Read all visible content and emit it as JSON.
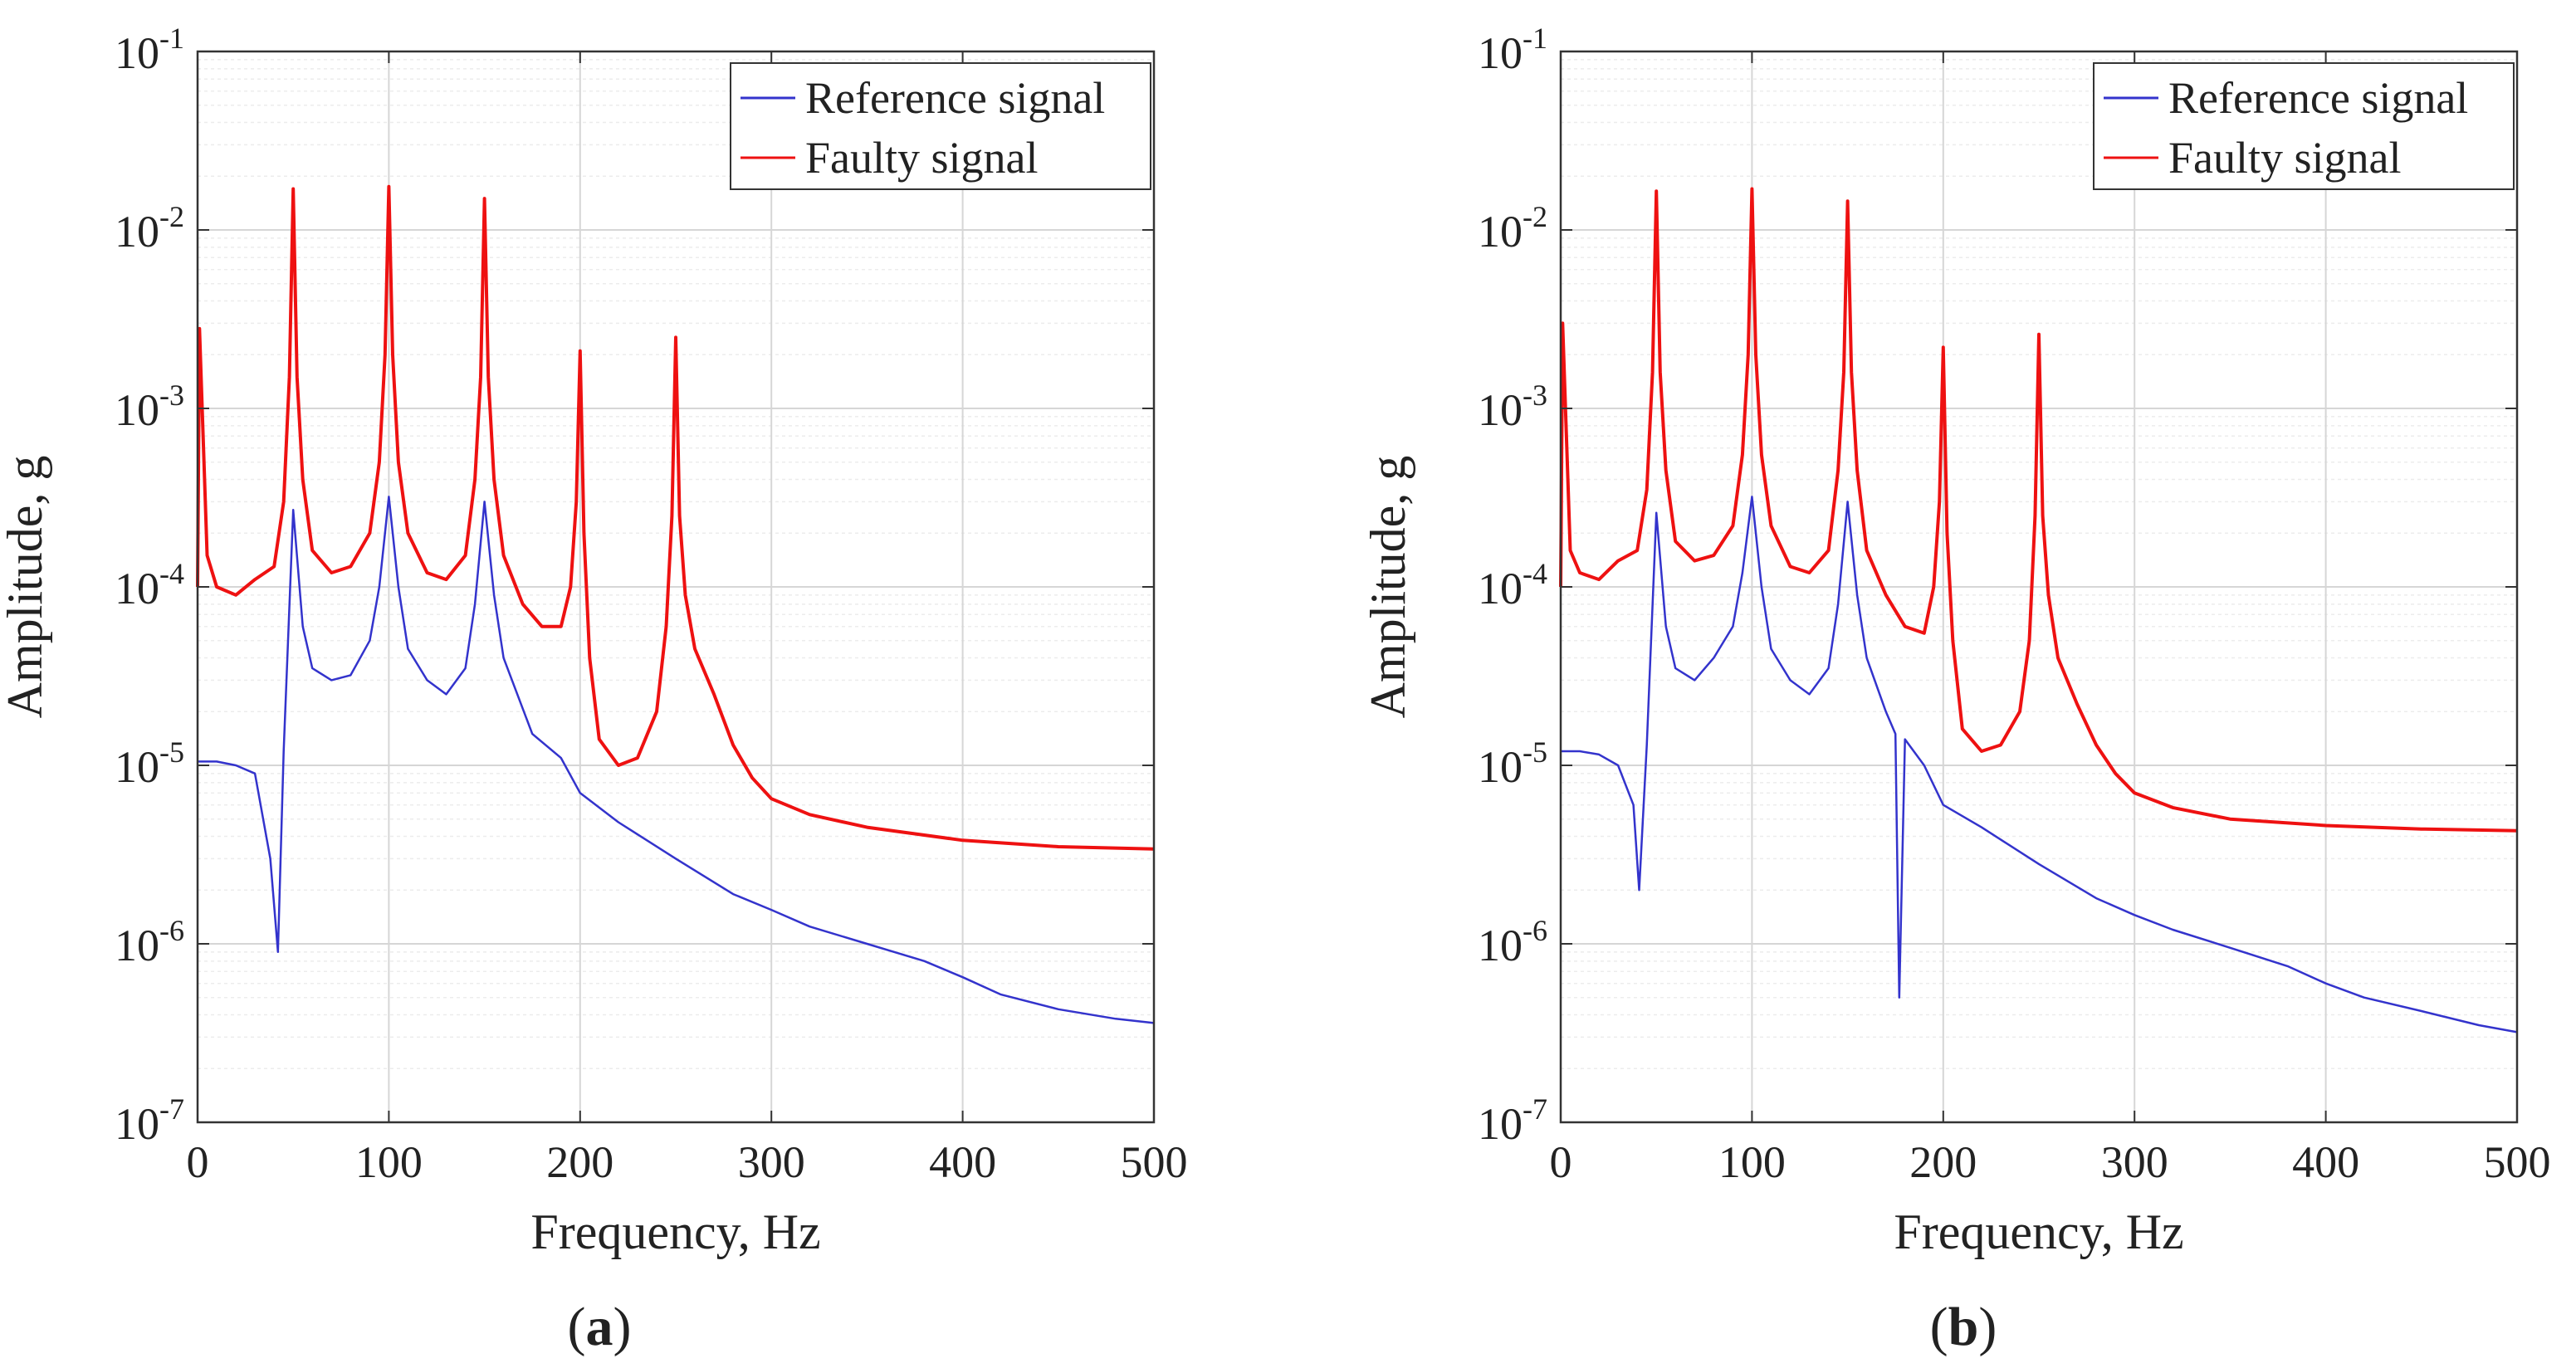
{
  "figure": {
    "captions": [
      {
        "open": "(",
        "letter": "a",
        "close": ")"
      },
      {
        "open": "(",
        "letter": "b",
        "close": ")"
      }
    ]
  },
  "chart_data": [
    {
      "type": "line",
      "panel": "a",
      "xlabel": "Frequency, Hz",
      "ylabel": "Amplitude, g",
      "xlim": [
        0,
        500
      ],
      "ylim": [
        1e-07,
        0.1
      ],
      "yscale": "log",
      "grid": true,
      "legend_position": "top-right",
      "x_ticks": [
        "0",
        "100",
        "200",
        "300",
        "400",
        "500"
      ],
      "y_ticks": [
        {
          "base": "10",
          "exp": "-7"
        },
        {
          "base": "10",
          "exp": "-6"
        },
        {
          "base": "10",
          "exp": "-5"
        },
        {
          "base": "10",
          "exp": "-4"
        },
        {
          "base": "10",
          "exp": "-3"
        },
        {
          "base": "10",
          "exp": "-2"
        },
        {
          "base": "10",
          "exp": "-1"
        }
      ],
      "series": [
        {
          "name": "Reference signal",
          "color": "#3333cc",
          "x": [
            0,
            10,
            20,
            30,
            38,
            42,
            45,
            50,
            55,
            60,
            70,
            80,
            90,
            95,
            100,
            105,
            110,
            120,
            130,
            140,
            145,
            150,
            155,
            160,
            175,
            190,
            200,
            220,
            250,
            280,
            300,
            320,
            350,
            380,
            400,
            420,
            450,
            480,
            500
          ],
          "y": [
            1.05e-05,
            1.05e-05,
            1e-05,
            9e-06,
            3e-06,
            9e-07,
            1.2e-05,
            0.00027,
            6e-05,
            3.5e-05,
            3e-05,
            3.2e-05,
            5e-05,
            0.0001,
            0.00032,
            0.0001,
            4.5e-05,
            3e-05,
            2.5e-05,
            3.5e-05,
            8e-05,
            0.0003,
            9e-05,
            4e-05,
            1.5e-05,
            1.1e-05,
            7e-06,
            4.8e-06,
            3e-06,
            1.9e-06,
            1.55e-06,
            1.25e-06,
            1e-06,
            8e-07,
            6.5e-07,
            5.2e-07,
            4.3e-07,
            3.8e-07,
            3.6e-07
          ]
        },
        {
          "name": "Faulty signal",
          "color": "#ee1111",
          "x": [
            0,
            1,
            5,
            10,
            20,
            30,
            40,
            45,
            48,
            50,
            52,
            55,
            60,
            70,
            80,
            90,
            95,
            98,
            100,
            102,
            105,
            110,
            120,
            130,
            140,
            145,
            148,
            150,
            152,
            155,
            160,
            170,
            180,
            190,
            195,
            198,
            200,
            202,
            205,
            210,
            220,
            230,
            240,
            245,
            248,
            250,
            252,
            255,
            260,
            270,
            280,
            290,
            300,
            320,
            350,
            400,
            450,
            500
          ],
          "y": [
            0.0001,
            0.0028,
            0.00015,
            0.0001,
            9e-05,
            0.00011,
            0.00013,
            0.0003,
            0.0015,
            0.017,
            0.0015,
            0.0004,
            0.00016,
            0.00012,
            0.00013,
            0.0002,
            0.0005,
            0.002,
            0.0175,
            0.002,
            0.0005,
            0.0002,
            0.00012,
            0.00011,
            0.00015,
            0.0004,
            0.0015,
            0.015,
            0.0015,
            0.0004,
            0.00015,
            8e-05,
            6e-05,
            6e-05,
            0.0001,
            0.0003,
            0.0021,
            0.0002,
            4e-05,
            1.4e-05,
            1e-05,
            1.1e-05,
            2e-05,
            6e-05,
            0.00025,
            0.0025,
            0.00025,
            9e-05,
            4.5e-05,
            2.5e-05,
            1.3e-05,
            8.5e-06,
            6.5e-06,
            5.3e-06,
            4.5e-06,
            3.8e-06,
            3.5e-06,
            3.4e-06
          ]
        }
      ]
    },
    {
      "type": "line",
      "panel": "b",
      "xlabel": "Frequency, Hz",
      "ylabel": "Amplitude, g",
      "xlim": [
        0,
        500
      ],
      "ylim": [
        1e-07,
        0.1
      ],
      "yscale": "log",
      "grid": true,
      "legend_position": "top-right",
      "x_ticks": [
        "0",
        "100",
        "200",
        "300",
        "400",
        "500"
      ],
      "y_ticks": [
        {
          "base": "10",
          "exp": "-7"
        },
        {
          "base": "10",
          "exp": "-6"
        },
        {
          "base": "10",
          "exp": "-5"
        },
        {
          "base": "10",
          "exp": "-4"
        },
        {
          "base": "10",
          "exp": "-3"
        },
        {
          "base": "10",
          "exp": "-2"
        },
        {
          "base": "10",
          "exp": "-1"
        }
      ],
      "series": [
        {
          "name": "Reference signal",
          "color": "#3333cc",
          "x": [
            0,
            10,
            20,
            30,
            38,
            41,
            45,
            50,
            55,
            60,
            70,
            80,
            90,
            95,
            100,
            105,
            110,
            120,
            130,
            140,
            145,
            150,
            155,
            160,
            170,
            175,
            177,
            180,
            190,
            200,
            220,
            250,
            280,
            300,
            320,
            350,
            380,
            400,
            420,
            450,
            480,
            500
          ],
          "y": [
            1.2e-05,
            1.2e-05,
            1.15e-05,
            1e-05,
            6e-06,
            2e-06,
            1.3e-05,
            0.00026,
            6e-05,
            3.5e-05,
            3e-05,
            4e-05,
            6e-05,
            0.00012,
            0.00032,
            0.0001,
            4.5e-05,
            3e-05,
            2.5e-05,
            3.5e-05,
            8e-05,
            0.0003,
            9e-05,
            4e-05,
            2e-05,
            1.5e-05,
            5e-07,
            1.4e-05,
            1e-05,
            6e-06,
            4.5e-06,
            2.8e-06,
            1.8e-06,
            1.45e-06,
            1.2e-06,
            9.5e-07,
            7.5e-07,
            6e-07,
            5e-07,
            4.2e-07,
            3.5e-07,
            3.2e-07
          ]
        },
        {
          "name": "Faulty signal",
          "color": "#ee1111",
          "x": [
            0,
            1,
            5,
            10,
            20,
            30,
            40,
            45,
            48,
            50,
            52,
            55,
            60,
            70,
            80,
            90,
            95,
            98,
            100,
            102,
            105,
            110,
            120,
            130,
            140,
            145,
            148,
            150,
            152,
            155,
            160,
            170,
            180,
            190,
            195,
            198,
            200,
            202,
            205,
            210,
            220,
            230,
            240,
            245,
            248,
            250,
            252,
            255,
            260,
            270,
            280,
            290,
            300,
            320,
            350,
            400,
            450,
            500
          ],
          "y": [
            0.0001,
            0.003,
            0.00016,
            0.00012,
            0.00011,
            0.00014,
            0.00016,
            0.00035,
            0.0016,
            0.0165,
            0.0016,
            0.00045,
            0.00018,
            0.00014,
            0.00015,
            0.00022,
            0.00055,
            0.002,
            0.017,
            0.002,
            0.00055,
            0.00022,
            0.00013,
            0.00012,
            0.00016,
            0.00045,
            0.0016,
            0.0145,
            0.0016,
            0.00045,
            0.00016,
            9e-05,
            6e-05,
            5.5e-05,
            0.0001,
            0.0003,
            0.0022,
            0.0002,
            5e-05,
            1.6e-05,
            1.2e-05,
            1.3e-05,
            2e-05,
            5e-05,
            0.00025,
            0.0026,
            0.00025,
            9e-05,
            4e-05,
            2.2e-05,
            1.3e-05,
            9e-06,
            7e-06,
            5.8e-06,
            5e-06,
            4.6e-06,
            4.4e-06,
            4.3e-06
          ]
        }
      ]
    }
  ]
}
